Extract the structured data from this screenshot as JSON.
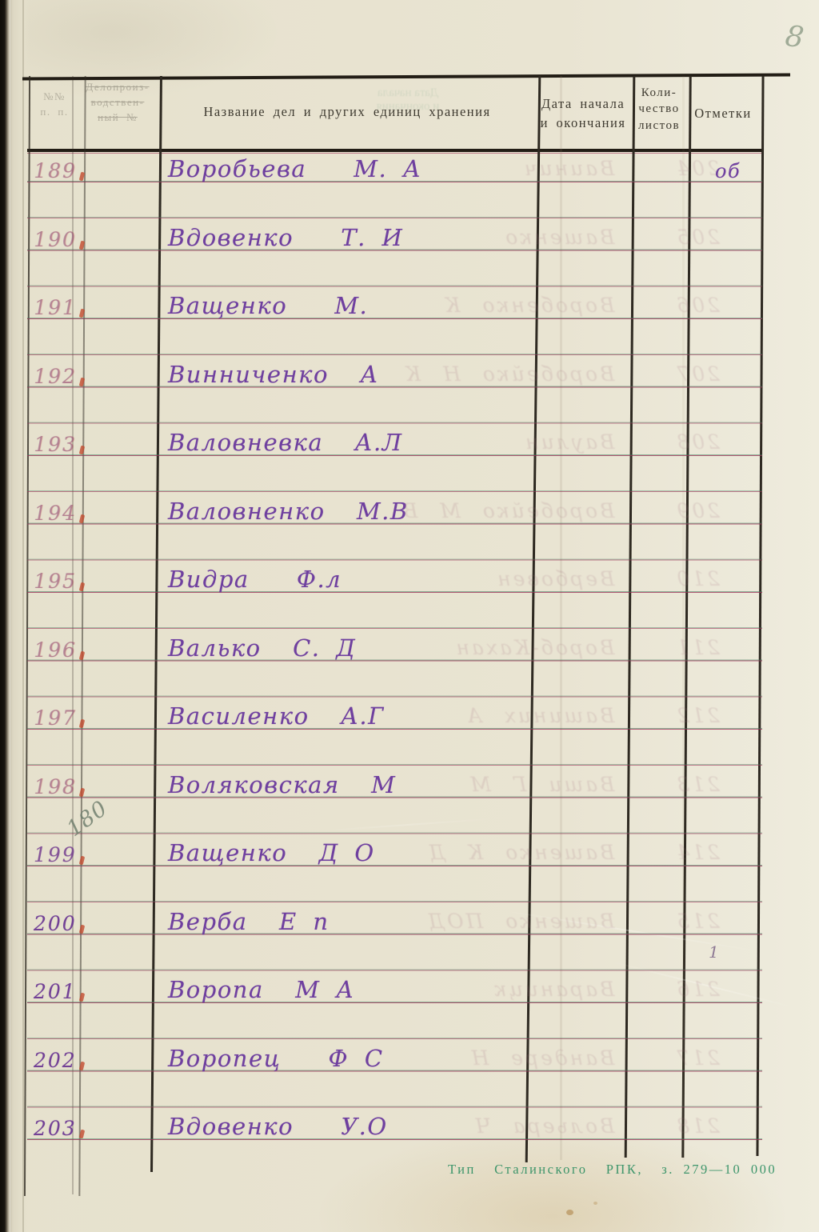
{
  "page": {
    "page_number": "8",
    "footer_imprint": "Тип  Сталинского  РПК,  з. 279—10 000"
  },
  "header": {
    "col_num": "№№\nп. п.",
    "col_record": "Делопроиз-\nводствен-\nный №",
    "col_title": "Название дел и других единиц хранения",
    "col_date": "Дата начала\nи окончания",
    "col_sheets": "Коли-\nчество\nлистов",
    "col_marks": "Отметки",
    "ghost_header": "Дата начала\nи окончания"
  },
  "annotations": {
    "pencil_renumber": "180",
    "row1_mark": "об",
    "stray_mark": "1"
  },
  "rows": [
    {
      "num": "189",
      "name": "Воробьева   М. А",
      "bleed": "204   Ваинич"
    },
    {
      "num": "190",
      "name": "Вдовенко   Т. И",
      "bleed": "205   Вашенко"
    },
    {
      "num": "191",
      "name": "Ващенко   М.",
      "bleed": "206   Воробенко К"
    },
    {
      "num": "192",
      "name": "Винниченко  А",
      "bleed": "207   Воробейко Н К"
    },
    {
      "num": "193",
      "name": "Валовневка  А.Л",
      "bleed": "208   Ваулин"
    },
    {
      "num": "194",
      "name": "Валовненко  М.В",
      "bleed": "209   Воробейко М В"
    },
    {
      "num": "195",
      "name": "Видра   Ф.л",
      "bleed": "210   Вербовен"
    },
    {
      "num": "196",
      "name": "Валько  С. Д",
      "bleed": "211   Вороб-Кахан"
    },
    {
      "num": "197",
      "name": "Василенко  А.Г",
      "bleed": "212   Вашиних А"
    },
    {
      "num": "198",
      "name": "Воляковская  М",
      "bleed": "213   Ваши Г М"
    },
    {
      "num": "199",
      "name": "Ващенко  Д О",
      "bleed": "214   Вашенко К Д"
    },
    {
      "num": "200",
      "name": "Верба  Е п",
      "bleed": "215   Вашенко ПОД"
    },
    {
      "num": "201",
      "name": "Воропа  М А",
      "bleed": "216   Вараницк"
    },
    {
      "num": "202",
      "name": "Воропец   Ф С",
      "bleed": "217   Вандере Н"
    },
    {
      "num": "203",
      "name": "Вдовенко   У.О",
      "bleed": "218   Вольера Ч"
    }
  ]
}
